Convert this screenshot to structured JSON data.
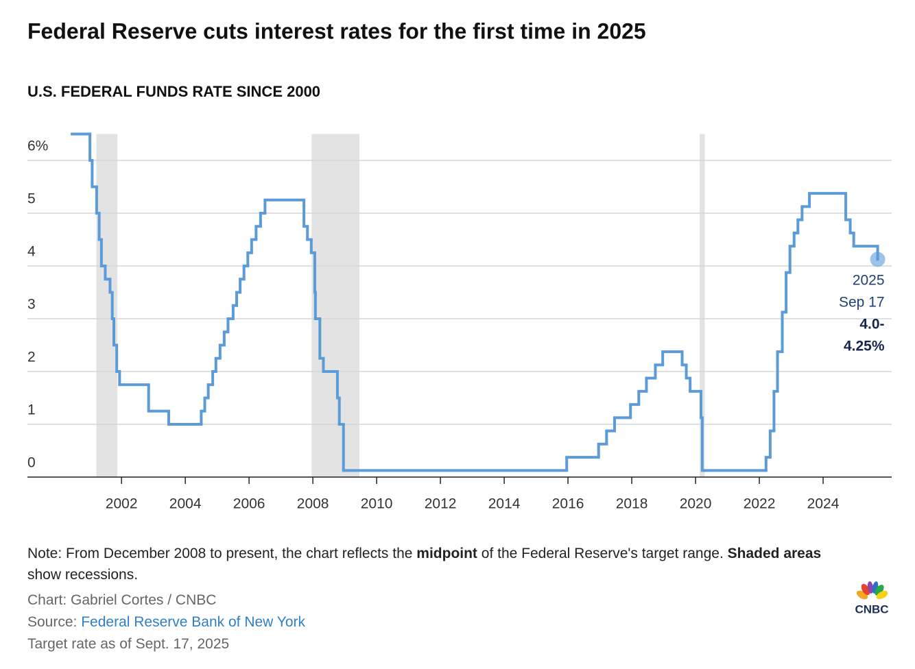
{
  "chart_data": {
    "type": "step-line",
    "title": "Federal Reserve cuts interest rates for the first time in 2025",
    "subtitle": "U.S. FEDERAL FUNDS RATE SINCE 2000",
    "x": [
      2000.45,
      2001.01,
      2001.08,
      2001.22,
      2001.3,
      2001.37,
      2001.49,
      2001.64,
      2001.71,
      2001.76,
      2001.85,
      2001.94,
      2002.85,
      2003.48,
      2004.5,
      2004.61,
      2004.72,
      2004.86,
      2004.96,
      2005.09,
      2005.22,
      2005.34,
      2005.5,
      2005.61,
      2005.72,
      2005.84,
      2005.96,
      2006.08,
      2006.22,
      2006.36,
      2006.5,
      2007.72,
      2007.83,
      2007.95,
      2008.06,
      2008.08,
      2008.22,
      2008.33,
      2008.77,
      2008.83,
      2008.96,
      2015.96,
      2016.96,
      2017.21,
      2017.46,
      2017.96,
      2018.22,
      2018.46,
      2018.74,
      2018.97,
      2019.58,
      2019.71,
      2019.83,
      2020.17,
      2020.21,
      2022.21,
      2022.34,
      2022.46,
      2022.57,
      2022.72,
      2022.84,
      2022.96,
      2023.09,
      2023.21,
      2023.34,
      2023.57,
      2024.71,
      2024.85,
      2024.96,
      2025.71
    ],
    "series": [
      {
        "color": "#5b9bd8",
        "values": [
          6.5,
          6.0,
          5.5,
          5.0,
          4.5,
          4.0,
          3.75,
          3.5,
          3.0,
          2.5,
          2.0,
          1.75,
          1.25,
          1.0,
          1.25,
          1.5,
          1.75,
          2.0,
          2.25,
          2.5,
          2.75,
          3.0,
          3.25,
          3.5,
          3.75,
          4.0,
          4.25,
          4.5,
          4.75,
          5.0,
          5.25,
          4.75,
          4.5,
          4.25,
          3.5,
          3.0,
          2.25,
          2.0,
          1.5,
          1.0,
          0.125,
          0.375,
          0.625,
          0.875,
          1.125,
          1.375,
          1.625,
          1.875,
          2.125,
          2.375,
          2.125,
          1.875,
          1.625,
          1.125,
          0.125,
          0.375,
          0.875,
          1.625,
          2.375,
          3.125,
          3.875,
          4.375,
          4.625,
          4.875,
          5.125,
          5.375,
          4.875,
          4.625,
          4.375,
          4.125
        ]
      }
    ],
    "recessions": [
      [
        2001.21,
        2001.87
      ],
      [
        2007.96,
        2009.46
      ],
      [
        2020.13,
        2020.29
      ]
    ],
    "xlim": [
      1999.05,
      2026.15
    ],
    "xticks": [
      2002,
      2004,
      2006,
      2008,
      2010,
      2012,
      2014,
      2016,
      2018,
      2020,
      2022,
      2024
    ],
    "ylim": [
      0,
      6.5
    ],
    "yticks": [
      0,
      1,
      2,
      3,
      4,
      5,
      {
        "value": 6,
        "label": "6%"
      }
    ],
    "grid": true,
    "annotation": [
      "2025",
      "Sep 17",
      "4.0-",
      "4.25%"
    ]
  },
  "note": [
    "Note: From December 2008 to present, the chart reflects the ",
    "midpoint",
    " of the Federal Reserve's target range. ",
    "Shaded areas",
    " show recessions."
  ],
  "credit": "Chart: Gabriel Cortes / CNBC",
  "source": {
    "label": "Source: ",
    "link": "Federal Reserve Bank of New York"
  },
  "as_of": "Target rate as of Sept. 17, 2025",
  "logo": "CNBC"
}
